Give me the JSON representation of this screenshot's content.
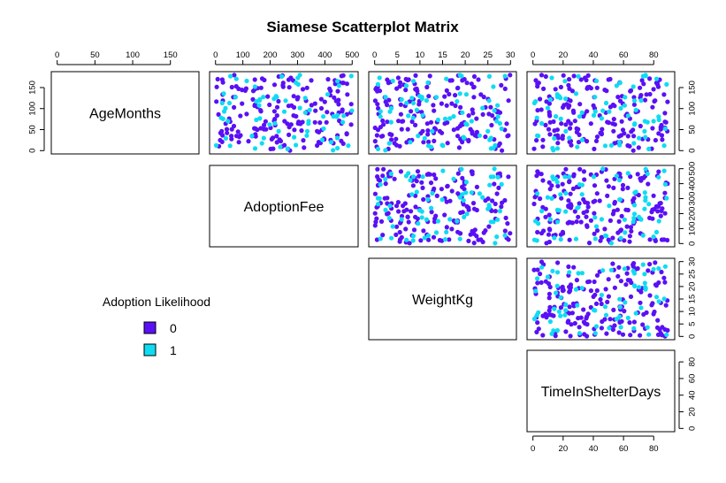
{
  "chart_data": {
    "type": "scatter",
    "title": "Siamese Scatterplot Matrix",
    "variables": [
      {
        "name": "AgeMonths",
        "range": [
          0,
          180
        ],
        "ticks": [
          0,
          50,
          100,
          150
        ]
      },
      {
        "name": "AdoptionFee",
        "range": [
          0,
          500
        ],
        "ticks": [
          0,
          100,
          200,
          300,
          400,
          500
        ]
      },
      {
        "name": "WeightKg",
        "range": [
          0,
          30
        ],
        "ticks": [
          0,
          5,
          10,
          15,
          20,
          25,
          30
        ]
      },
      {
        "name": "TimeInShelterDays",
        "range": [
          0,
          90
        ],
        "ticks": [
          0,
          20,
          40,
          60,
          80
        ]
      }
    ],
    "legend": {
      "title": "Adoption Likelihood",
      "entries": [
        {
          "label": "0",
          "color": "#5a10f5"
        },
        {
          "label": "1",
          "color": "#0fdcf2"
        }
      ]
    },
    "point_count": 250,
    "class1_share": 0.3,
    "layout": "upper-triangle",
    "grid": false
  }
}
